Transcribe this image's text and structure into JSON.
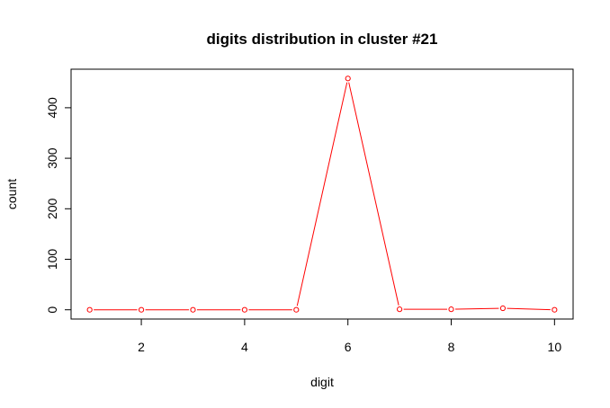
{
  "chart_data": {
    "type": "line",
    "title": "digits distribution in cluster #21",
    "xlabel": "digit",
    "ylabel": "count",
    "x": [
      1,
      2,
      3,
      4,
      5,
      6,
      7,
      8,
      9,
      10
    ],
    "series": [
      {
        "values": [
          0,
          0,
          0,
          0,
          0,
          458,
          1,
          1,
          3,
          0
        ],
        "color": "#ff0000",
        "marker": "open-circle"
      }
    ],
    "xlim": [
      0.64,
      10.36
    ],
    "ylim": [
      -18.32,
      476.32
    ],
    "xticks": [
      2,
      4,
      6,
      8,
      10
    ],
    "yticks": [
      0,
      100,
      200,
      300,
      400
    ],
    "xtick_labels": [
      "2",
      "4",
      "6",
      "8",
      "10"
    ],
    "ytick_labels": [
      "0",
      "100",
      "200",
      "300",
      "400"
    ],
    "grid": false,
    "legend": "none"
  }
}
